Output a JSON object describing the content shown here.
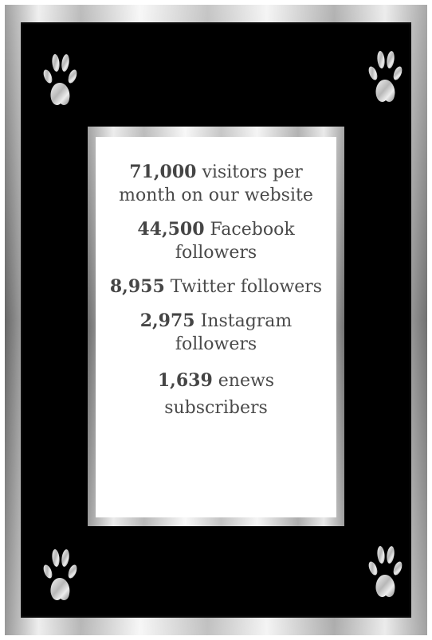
{
  "stats": [
    {
      "number": "71,000",
      "text": "visitors per month on our website"
    },
    {
      "number": "44,500",
      "text": "Facebook followers"
    },
    {
      "number": "8,955",
      "text": "Twitter followers"
    },
    {
      "number": "2,975",
      "text": "Instagram followers"
    },
    {
      "number": "1,639",
      "text": "enews subscribers"
    }
  ],
  "colors": {
    "background": "#000000",
    "card": "#ffffff",
    "text": "#4a4a4a",
    "frame": "#c0c0c0"
  },
  "icons": [
    "paw-print-icon",
    "paw-print-icon",
    "paw-print-icon",
    "paw-print-icon"
  ]
}
